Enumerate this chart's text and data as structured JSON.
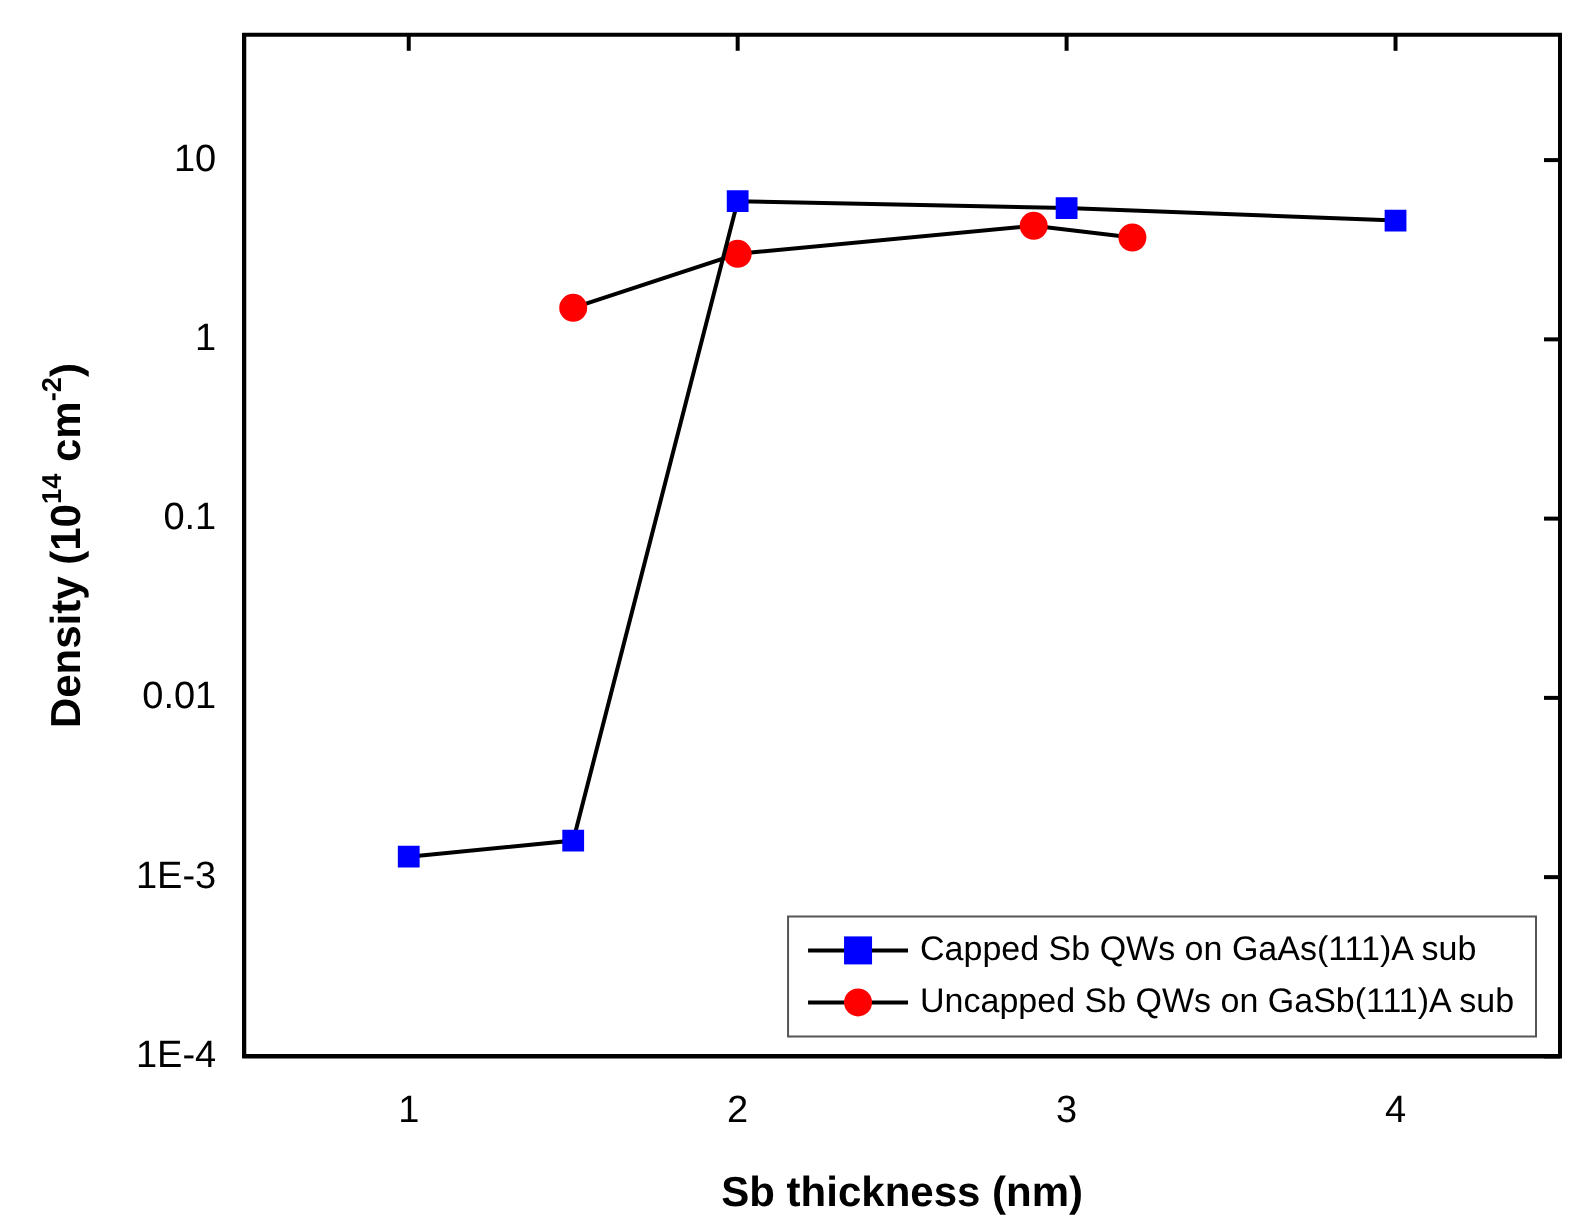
{
  "chart_data": {
    "type": "line",
    "xlabel": "Sb thickness (nm)",
    "ylabel": "Density (10$^{14}$ cm$^{-2}$)",
    "log": "y",
    "xlim": [
      0.5,
      4.5
    ],
    "xticks": [
      1,
      2,
      3,
      4
    ],
    "ylim": [
      0.0001,
      50
    ],
    "yticks": [
      {
        "value": 0.0001,
        "label": "1E-4"
      },
      {
        "value": 0.001,
        "label": "1E-3"
      },
      0.01,
      0.1,
      1,
      10
    ],
    "grid": false,
    "legend": "bottom right",
    "line_style": "solid",
    "series": [
      {
        "name": "Capped Sb QWs on GaAs(111)A sub",
        "color": "#0000ff",
        "marker": "square",
        "x": [
          1,
          1.5,
          2,
          3,
          4
        ],
        "values": [
          0.0013,
          0.0016,
          5.9,
          5.4,
          4.6
        ]
      },
      {
        "name": "Uncapped Sb QWs on GaSb(111)A sub",
        "color": "#ff0000",
        "marker": "circle",
        "x": [
          1.5,
          2,
          2.9,
          3.2
        ],
        "values": [
          1.5,
          3.0,
          4.3,
          3.7
        ]
      }
    ]
  }
}
